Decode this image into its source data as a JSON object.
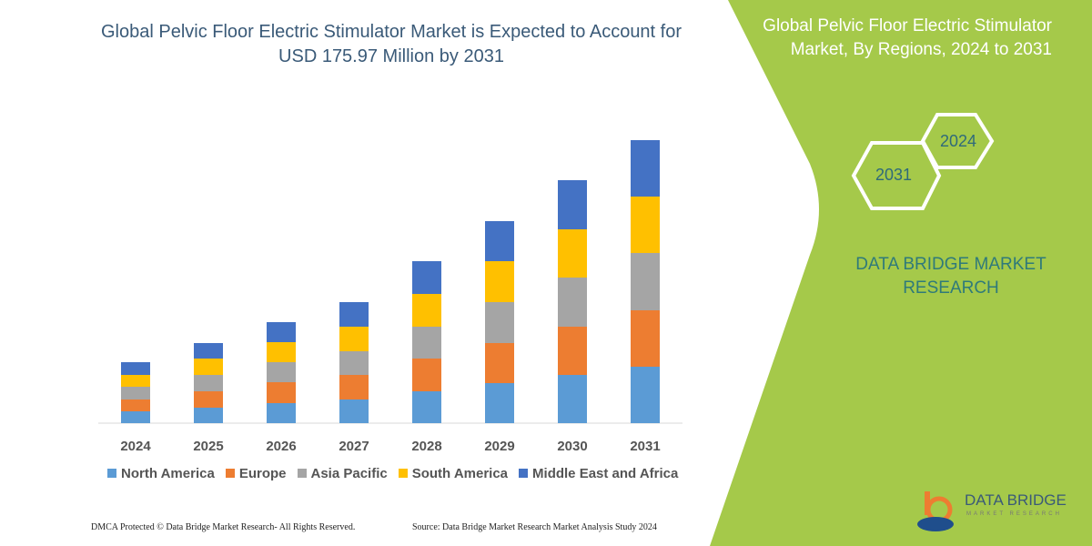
{
  "title": "Global Pelvic Floor Electric Stimulator Market is Expected to Account for USD 175.97 Million by 2031",
  "side_panel": {
    "title": "Global Pelvic Floor Electric Stimulator Market, By Regions, 2024 to 2031",
    "hex_1": "2024",
    "hex_2": "2031",
    "brand": "DATA BRIDGE MARKET RESEARCH",
    "logo_text": "DATA BRIDGE",
    "logo_sub": "MARKET RESEARCH",
    "color": "#a5c94a"
  },
  "footer": {
    "left": "DMCA Protected © Data Bridge Market Research- All Rights Reserved.",
    "right": "Source: Data Bridge Market Research Market Analysis Study 2024"
  },
  "chart_data": {
    "type": "bar",
    "stacked": true,
    "title": "",
    "xlabel": "",
    "ylabel": "",
    "grid": false,
    "legend": "bottom",
    "categories": [
      "2024",
      "2025",
      "2026",
      "2027",
      "2028",
      "2029",
      "2030",
      "2031"
    ],
    "ylim": [
      0,
      320
    ],
    "series": [
      {
        "name": "North America",
        "color": "#5b9bd5",
        "values": [
          13,
          17,
          22,
          26,
          35,
          44,
          53,
          62
        ]
      },
      {
        "name": "Europe",
        "color": "#ed7d31",
        "values": [
          13,
          18,
          23,
          27,
          36,
          44,
          53,
          62
        ]
      },
      {
        "name": "Asia Pacific",
        "color": "#a5a5a5",
        "values": [
          14,
          18,
          22,
          26,
          35,
          45,
          54,
          63
        ]
      },
      {
        "name": "South America",
        "color": "#ffc000",
        "values": [
          13,
          18,
          22,
          27,
          36,
          45,
          53,
          62
        ]
      },
      {
        "name": "Middle East and Africa",
        "color": "#4472c4",
        "values": [
          14,
          17,
          22,
          27,
          36,
          44,
          54,
          62
        ]
      }
    ]
  }
}
